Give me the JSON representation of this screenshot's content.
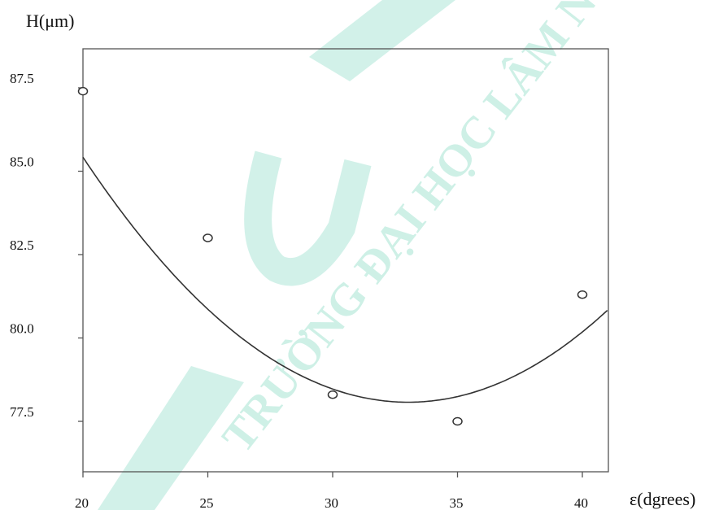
{
  "watermark": {
    "text": "TRƯỜNG ĐẠI HỌC LÂM NGHIỆP",
    "color": "#7fd8c0"
  },
  "chart_data": {
    "type": "scatter",
    "ylabel": "H(μm)",
    "xlabel": "ε(dgrees)",
    "xlim": [
      20,
      41
    ],
    "ylim": [
      76,
      88.7
    ],
    "x_ticks": [
      20,
      25,
      30,
      35,
      40
    ],
    "y_ticks": [
      77.5,
      80.0,
      82.5,
      85.0,
      87.5
    ],
    "x_tick_labels": [
      "20",
      "25",
      "30",
      "35",
      "40"
    ],
    "y_tick_labels": [
      "77.5",
      "80.0",
      "82.5",
      "85.0",
      "87.5"
    ],
    "grid": false,
    "series": [
      {
        "kind": "points",
        "x": [
          20,
          25,
          30,
          35,
          40
        ],
        "y": [
          87.4,
          83.0,
          78.3,
          77.5,
          81.3
        ],
        "color": "#333333"
      },
      {
        "kind": "quadratic-fit",
        "coefficients": [
          0.0433,
          -2.86,
          125.3
        ],
        "x_range": [
          20,
          41
        ],
        "color": "#333333"
      }
    ]
  }
}
